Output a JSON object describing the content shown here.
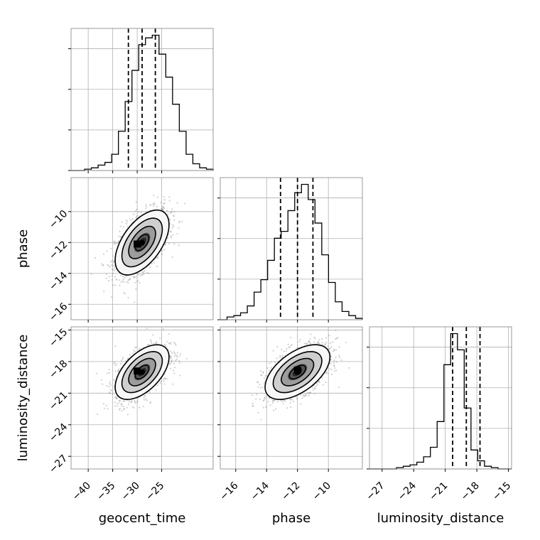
{
  "chart_data": {
    "type": "corner",
    "parameters": [
      "geocent_time",
      "phase",
      "luminosity_distance"
    ],
    "axis_labels": {
      "geocent_time": "geocent_time",
      "phase": "phase",
      "luminosity_distance": "luminosity_distance"
    },
    "ranges": {
      "geocent_time": [
        -43.5,
        -14.5
      ],
      "phase": [
        -17.0,
        -7.8
      ],
      "luminosity_distance": [
        -28.2,
        -14.7
      ]
    },
    "ticks": {
      "geocent_time": [
        -40,
        -35,
        -30,
        -25
      ],
      "phase": [
        -16,
        -14,
        -12,
        -10
      ],
      "luminosity_distance": [
        -27,
        -24,
        -21,
        -18,
        -15
      ]
    },
    "tick_labels": {
      "geocent_time": [
        "−40",
        "−35",
        "−30",
        "−25"
      ],
      "phase": [
        "−16",
        "−14",
        "−12",
        "−10"
      ],
      "luminosity_distance": [
        "−27",
        "−24",
        "−21",
        "−18",
        "−15"
      ]
    },
    "histograms": {
      "geocent_time": {
        "counts": [
          0,
          0,
          0.01,
          0.02,
          0.04,
          0.06,
          0.12,
          0.29,
          0.51,
          0.74,
          0.93,
          0.98,
          1.0,
          0.86,
          0.69,
          0.49,
          0.29,
          0.12,
          0.05,
          0.02,
          0.01
        ],
        "quantiles": [
          -31.8,
          -29.0,
          -26.3
        ]
      },
      "phase": {
        "counts": [
          0,
          0.02,
          0.03,
          0.05,
          0.1,
          0.2,
          0.29,
          0.43,
          0.59,
          0.64,
          0.79,
          0.92,
          0.98,
          0.87,
          0.7,
          0.47,
          0.27,
          0.13,
          0.06,
          0.03,
          0.01
        ],
        "quantiles": [
          -13.1,
          -12.0,
          -11.0
        ]
      },
      "luminosity_distance": {
        "counts": [
          0,
          0,
          0,
          0,
          0.01,
          0.02,
          0.03,
          0.05,
          0.09,
          0.16,
          0.35,
          0.77,
          1.0,
          0.88,
          0.45,
          0.14,
          0.06,
          0.02,
          0.01,
          0,
          0
        ],
        "quantiles": [
          -20.3,
          -19.0,
          -17.7
        ]
      }
    },
    "correlations": {
      "phase|geocent_time": 0.55,
      "luminosity_distance|geocent_time": 0.55,
      "luminosity_distance|phase": 0.55
    },
    "truth_markers": {
      "phase|geocent_time": [
        -30.0,
        -12.1
      ],
      "luminosity_distance|geocent_time": [
        -30.0,
        -18.9
      ],
      "luminosity_distance|phase": [
        -12.0,
        -18.8
      ]
    },
    "grid": true
  }
}
